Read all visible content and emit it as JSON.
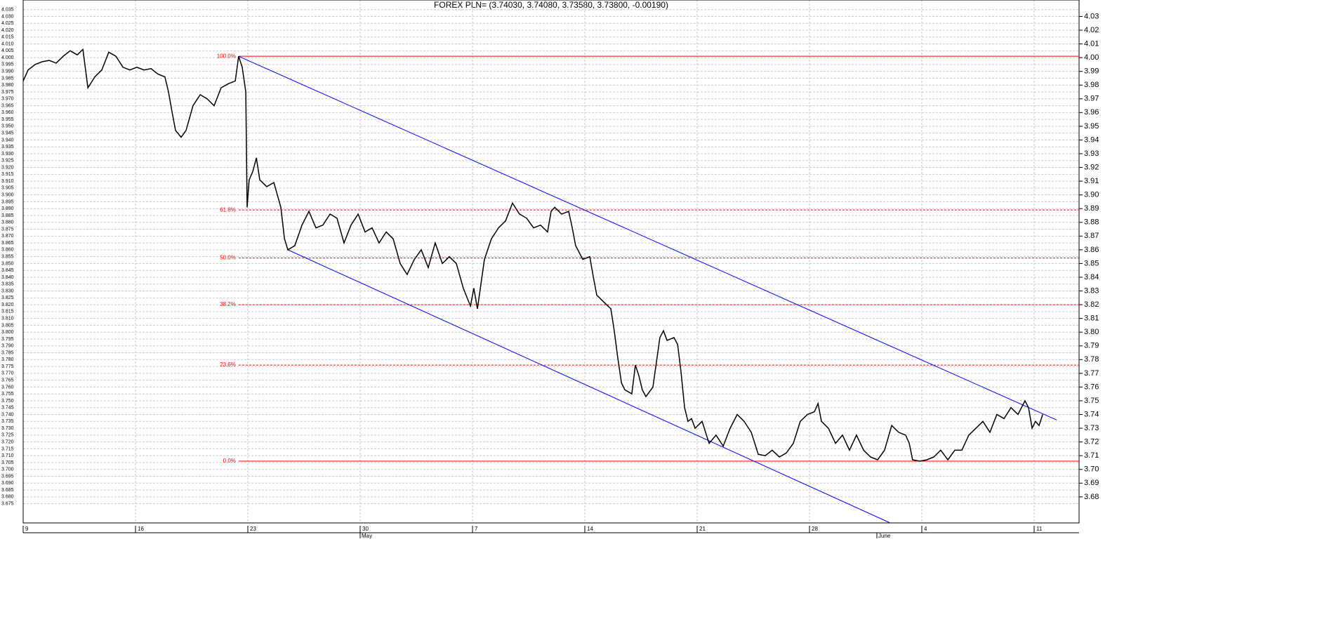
{
  "chart_data": {
    "type": "line",
    "title": "FOREX PLN= (3.74030, 3.74080, 3.73580, 3.73800, -0.00190)",
    "color": "#000000",
    "grid": true,
    "xlim": [
      0,
      47
    ],
    "ylim": [
      3.661,
      4.042
    ],
    "y2lim": [
      3.661,
      4.042
    ],
    "xticks": [
      {
        "value": 0,
        "label": "9"
      },
      {
        "value": 5,
        "label": "16"
      },
      {
        "value": 10,
        "label": "23"
      },
      {
        "value": 15,
        "label": "30"
      },
      {
        "value": 20,
        "label": "7"
      },
      {
        "value": 25,
        "label": "14"
      },
      {
        "value": 30,
        "label": "21"
      },
      {
        "value": 35,
        "label": "28"
      },
      {
        "value": 40,
        "label": "4"
      },
      {
        "value": 45,
        "label": "11"
      }
    ],
    "months": [
      {
        "value": 15,
        "label": "May"
      },
      {
        "value": 38,
        "label": "June"
      }
    ],
    "yticks": [
      3.675,
      {
        "value": 3.68,
        "label": "3.680"
      },
      3.685,
      {
        "value": 3.69,
        "label": "3.690"
      },
      3.695,
      {
        "value": 3.7,
        "label": "3.700"
      },
      3.705,
      {
        "value": 3.71,
        "label": "3.710"
      },
      3.715,
      {
        "value": 3.72,
        "label": "3.720"
      },
      3.725,
      {
        "value": 3.73,
        "label": "3.730"
      },
      3.735,
      {
        "value": 3.74,
        "label": "3.740"
      },
      3.745,
      {
        "value": 3.75,
        "label": "3.750"
      },
      3.755,
      {
        "value": 3.76,
        "label": "3.760"
      },
      3.765,
      {
        "value": 3.77,
        "label": "3.770"
      },
      3.775,
      {
        "value": 3.78,
        "label": "3.780"
      },
      3.785,
      {
        "value": 3.79,
        "label": "3.790"
      },
      3.795,
      {
        "value": 3.8,
        "label": "3.800"
      },
      3.805,
      {
        "value": 3.81,
        "label": "3.810"
      },
      3.815,
      {
        "value": 3.82,
        "label": "3.820"
      },
      3.825,
      {
        "value": 3.83,
        "label": "3.830"
      },
      3.835,
      {
        "value": 3.84,
        "label": "3.840"
      },
      3.845,
      {
        "value": 3.85,
        "label": "3.850"
      },
      3.855,
      {
        "value": 3.86,
        "label": "3.860"
      },
      3.865,
      {
        "value": 3.87,
        "label": "3.870"
      },
      3.875,
      {
        "value": 3.88,
        "label": "3.880"
      },
      3.885,
      {
        "value": 3.89,
        "label": "3.890"
      },
      3.895,
      {
        "value": 3.9,
        "label": "3.900"
      },
      3.905,
      {
        "value": 3.91,
        "label": "3.910"
      },
      3.915,
      {
        "value": 3.92,
        "label": "3.920"
      },
      3.925,
      {
        "value": 3.93,
        "label": "3.930"
      },
      3.935,
      {
        "value": 3.94,
        "label": "3.940"
      },
      3.945,
      {
        "value": 3.95,
        "label": "3.950"
      },
      3.955,
      {
        "value": 3.96,
        "label": "3.960"
      },
      3.965,
      {
        "value": 3.97,
        "label": "3.970"
      },
      3.975,
      {
        "value": 3.98,
        "label": "3.980"
      },
      3.985,
      {
        "value": 3.99,
        "label": "3.990"
      },
      3.995,
      {
        "value": 4,
        "label": "4.000"
      },
      4.005,
      {
        "value": 4.01,
        "label": "4.010"
      },
      4.015,
      {
        "value": 4.02,
        "label": "4.020"
      },
      4.025,
      {
        "value": 4.03,
        "label": "4.030"
      },
      4.035
    ],
    "y2ticks": [
      3.68,
      3.69,
      {
        "value": 3.7,
        "label": "3.70"
      },
      3.71,
      3.72,
      3.73,
      3.74,
      3.75,
      3.76,
      3.77,
      3.78,
      3.79,
      {
        "value": 3.8,
        "label": "3.80"
      },
      3.81,
      3.82,
      3.83,
      3.84,
      3.85,
      3.86,
      3.87,
      3.88,
      3.89,
      {
        "value": 3.9,
        "label": "3.90"
      },
      3.91,
      3.92,
      3.93,
      3.94,
      3.95,
      3.96,
      3.97,
      3.98,
      3.99,
      {
        "value": 4,
        "label": "4.00"
      },
      4.01,
      4.02,
      4.03
    ],
    "x": [
      0,
      0.22,
      0.53,
      0.84,
      1.16,
      1.47,
      1.78,
      2.09,
      2.41,
      2.66,
      2.88,
      3.19,
      3.5,
      3.81,
      4.13,
      4.44,
      4.75,
      5.06,
      5.38,
      5.69,
      6,
      6.31,
      6.47,
      6.63,
      6.78,
      7.03,
      7.25,
      7.56,
      7.88,
      8.19,
      8.5,
      8.81,
      9.13,
      9.44,
      9.59,
      9.75,
      9.91,
      9.97,
      10.06,
      10.22,
      10.38,
      10.53,
      10.84,
      11.16,
      11.47,
      11.63,
      11.78,
      12.09,
      12.41,
      12.72,
      13.03,
      13.34,
      13.66,
      13.97,
      14.28,
      14.59,
      14.91,
      15.22,
      15.53,
      15.84,
      16.16,
      16.47,
      16.78,
      17.09,
      17.41,
      17.72,
      18.03,
      18.34,
      18.66,
      18.97,
      19.28,
      19.59,
      19.91,
      20.06,
      20.22,
      20.53,
      20.84,
      21.16,
      21.47,
      21.78,
      22.09,
      22.41,
      22.72,
      23.03,
      23.34,
      23.5,
      23.66,
      23.97,
      24.28,
      24.44,
      24.59,
      24.91,
      25.22,
      25.38,
      25.53,
      25.84,
      26.16,
      26.31,
      26.47,
      26.63,
      26.78,
      27.09,
      27.25,
      27.41,
      27.56,
      27.72,
      28.03,
      28.34,
      28.5,
      28.66,
      28.97,
      29.13,
      29.28,
      29.44,
      29.59,
      29.75,
      29.91,
      30.22,
      30.53,
      30.84,
      31.16,
      31.47,
      31.78,
      32.09,
      32.41,
      32.72,
      33.03,
      33.34,
      33.66,
      33.97,
      34.28,
      34.59,
      34.91,
      35.22,
      35.38,
      35.53,
      35.84,
      36.16,
      36.47,
      36.78,
      37.09,
      37.41,
      37.72,
      38.03,
      38.34,
      38.66,
      38.97,
      39.28,
      39.44,
      39.59,
      39.91,
      40.22,
      40.53,
      40.84,
      41.16,
      41.47,
      41.78,
      42.09,
      42.41,
      42.72,
      43.03,
      43.34,
      43.66,
      43.97,
      44.28,
      44.59,
      44.75,
      44.91,
      45.06,
      45.22,
      45.38
    ],
    "values": [
      3.983,
      3.991,
      3.995,
      3.997,
      3.998,
      3.996,
      4.001,
      4.005,
      4.002,
      4.006,
      3.978,
      3.986,
      3.991,
      4.004,
      4.001,
      3.993,
      3.991,
      3.993,
      3.991,
      3.992,
      3.988,
      3.986,
      3.975,
      3.96,
      3.947,
      3.942,
      3.947,
      3.965,
      3.973,
      3.97,
      3.965,
      3.978,
      3.981,
      3.983,
      4.001,
      3.993,
      3.975,
      3.891,
      3.911,
      3.917,
      3.927,
      3.911,
      3.906,
      3.909,
      3.891,
      3.868,
      3.86,
      3.863,
      3.878,
      3.888,
      3.876,
      3.878,
      3.886,
      3.883,
      3.865,
      3.878,
      3.886,
      3.873,
      3.876,
      3.865,
      3.873,
      3.868,
      3.85,
      3.842,
      3.853,
      3.86,
      3.847,
      3.865,
      3.85,
      3.855,
      3.85,
      3.832,
      3.819,
      3.832,
      3.817,
      3.853,
      3.868,
      3.876,
      3.881,
      3.894,
      3.886,
      3.883,
      3.876,
      3.878,
      3.873,
      3.888,
      3.891,
      3.886,
      3.888,
      3.876,
      3.863,
      3.853,
      3.855,
      3.84,
      3.827,
      3.822,
      3.817,
      3.801,
      3.781,
      3.763,
      3.758,
      3.755,
      3.776,
      3.768,
      3.758,
      3.753,
      3.76,
      3.796,
      3.801,
      3.794,
      3.796,
      3.791,
      3.771,
      3.745,
      3.735,
      3.737,
      3.73,
      3.735,
      3.719,
      3.725,
      3.717,
      3.73,
      3.74,
      3.735,
      3.727,
      3.711,
      3.71,
      3.714,
      3.709,
      3.712,
      3.719,
      3.735,
      3.74,
      3.742,
      3.748,
      3.735,
      3.73,
      3.719,
      3.725,
      3.714,
      3.725,
      3.714,
      3.709,
      3.707,
      3.714,
      3.732,
      3.727,
      3.725,
      3.719,
      3.707,
      3.706,
      3.707,
      3.709,
      3.714,
      3.707,
      3.714,
      3.714,
      3.725,
      3.73,
      3.735,
      3.727,
      3.74,
      3.737,
      3.745,
      3.74,
      3.75,
      3.745,
      3.73,
      3.735,
      3.732,
      3.74
    ],
    "fib_start": 9.59,
    "fib_color": "#ff0000",
    "fib_levels": [
      {
        "label": "100.0%",
        "value": 4.001,
        "solid": true
      },
      {
        "label": "61.8%",
        "value": 3.889,
        "solid": false
      },
      {
        "label": "50.0%",
        "value": 3.854,
        "solid": false
      },
      {
        "label": "38.2%",
        "value": 3.82,
        "solid": false
      },
      {
        "label": "23.6%",
        "value": 3.776,
        "solid": false
      },
      {
        "label": "0.0%",
        "value": 3.706,
        "solid": true
      }
    ],
    "trendlines": [
      {
        "color": "#0000ff",
        "x": [
          9.59,
          46
        ],
        "y": [
          4.001,
          3.736
        ]
      },
      {
        "color": "#0000ff",
        "x": [
          11.78,
          38.59
        ],
        "y": [
          3.86,
          3.661
        ]
      }
    ]
  }
}
